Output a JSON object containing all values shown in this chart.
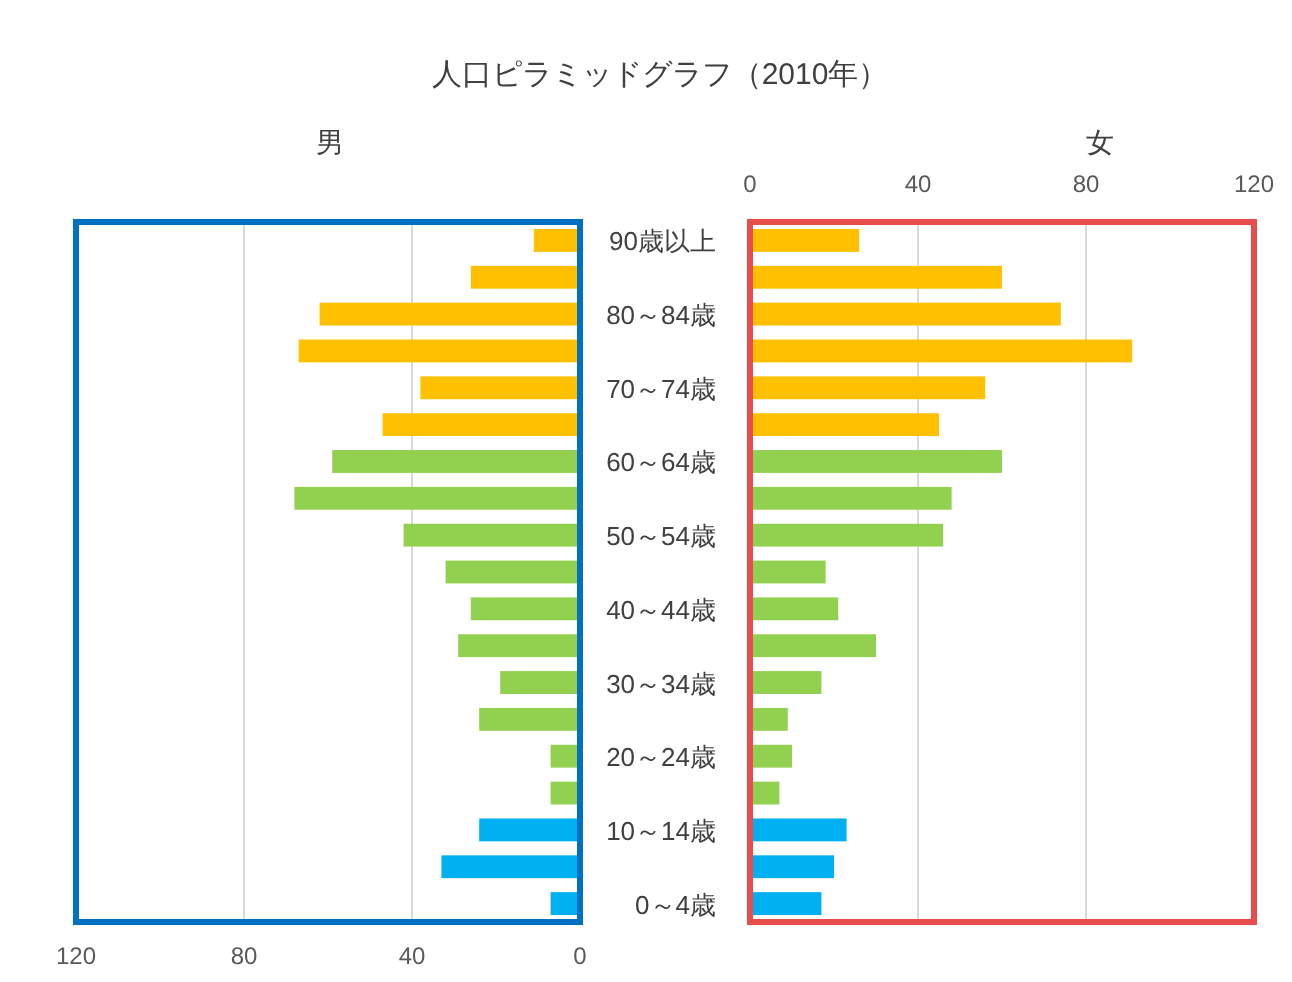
{
  "chart_data": [
    {
      "type": "bar",
      "orientation": "horizontal",
      "title": "人口ピラミッドグラフ（2010年）",
      "subtitle": "男",
      "categories": [
        "90歳以上",
        null,
        "80～84歳",
        null,
        "70～74歳",
        null,
        "60～64歳",
        null,
        "50～54歳",
        null,
        "40～44歳",
        null,
        "30～34歳",
        null,
        "20～24歳",
        null,
        "10～14歳",
        null,
        "0～4歳"
      ],
      "series": [
        {
          "values": [
            11,
            26,
            62,
            67,
            38,
            47,
            59,
            68,
            42,
            32,
            26,
            29,
            19,
            24,
            7,
            7,
            24,
            33,
            7
          ],
          "colors": [
            "#ffc000",
            "#ffc000",
            "#ffc000",
            "#ffc000",
            "#ffc000",
            "#ffc000",
            "#92d050",
            "#92d050",
            "#92d050",
            "#92d050",
            "#92d050",
            "#92d050",
            "#92d050",
            "#92d050",
            "#92d050",
            "#92d050",
            "#00b0f0",
            "#00b0f0",
            "#00b0f0"
          ]
        }
      ],
      "xlim": [
        120,
        0
      ],
      "xticks": [
        120,
        80,
        40,
        0
      ],
      "grid": "x"
    },
    {
      "type": "bar",
      "orientation": "horizontal",
      "title": "女",
      "categories": [
        null,
        null,
        null,
        null,
        null,
        null,
        null,
        null,
        null,
        null,
        null,
        null,
        null,
        null,
        null,
        null,
        null,
        null,
        null
      ],
      "series": [
        {
          "values": [
            26,
            60,
            74,
            91,
            56,
            45,
            60,
            48,
            46,
            18,
            21,
            30,
            17,
            9,
            10,
            7,
            23,
            20,
            17
          ],
          "colors": [
            "#ffc000",
            "#ffc000",
            "#ffc000",
            "#ffc000",
            "#ffc000",
            "#ffc000",
            "#92d050",
            "#92d050",
            "#92d050",
            "#92d050",
            "#92d050",
            "#92d050",
            "#92d050",
            "#92d050",
            "#92d050",
            "#92d050",
            "#00b0f0",
            "#00b0f0",
            "#00b0f0"
          ]
        }
      ],
      "xlim": [
        0,
        120
      ],
      "xticks": [
        0,
        40,
        80,
        120
      ],
      "grid": "x",
      "tick_labels": "x"
    }
  ]
}
